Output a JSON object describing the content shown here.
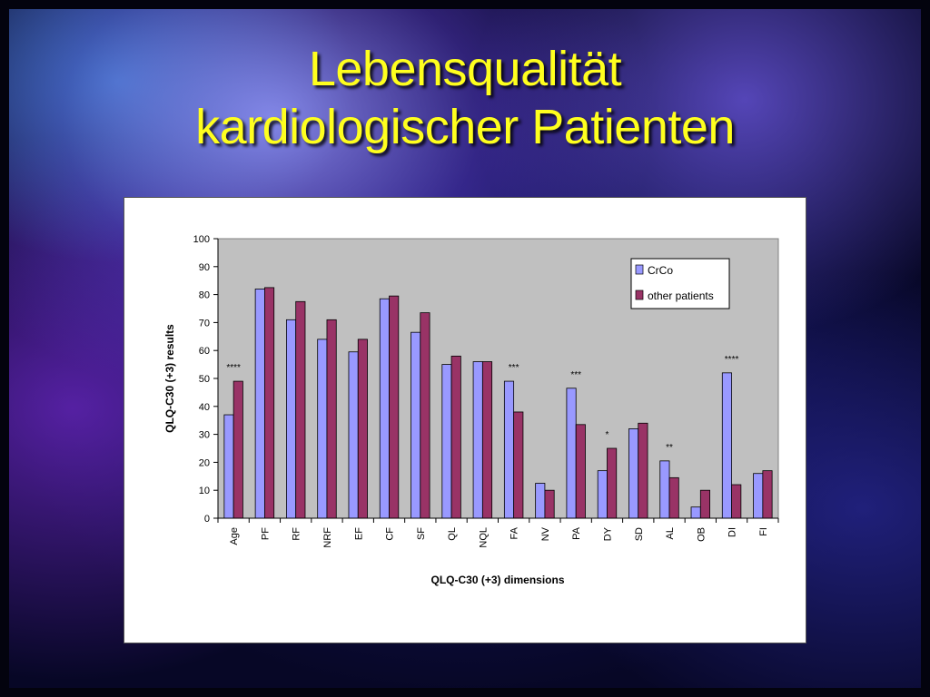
{
  "slide": {
    "title_line1": "Lebensqualität",
    "title_line2": "kardiologischer Patienten",
    "title_color": "#ffff1e"
  },
  "chart_data": {
    "type": "bar",
    "xlabel": "QLQ-C30 (+3) dimensions",
    "ylabel": "QLQ-C30 (+3) results",
    "ylim": [
      0,
      100
    ],
    "yticks": [
      0,
      10,
      20,
      30,
      40,
      50,
      60,
      70,
      80,
      90,
      100
    ],
    "categories": [
      "Age",
      "PF",
      "RF",
      "NRF",
      "EF",
      "CF",
      "SF",
      "QL",
      "NQL",
      "FA",
      "NV",
      "PA",
      "DY",
      "SD",
      "AL",
      "OB",
      "DI",
      "FI"
    ],
    "series": [
      {
        "name": "CrCo",
        "color": "#9999ff",
        "values": [
          37,
          82,
          71,
          64,
          59.5,
          78.5,
          66.5,
          55,
          56,
          49,
          12.5,
          46.5,
          17,
          32,
          20.5,
          4,
          52,
          16
        ]
      },
      {
        "name": "other patients",
        "color": "#993366",
        "values": [
          49,
          82.5,
          77.5,
          71,
          64,
          79.5,
          73.5,
          58,
          56,
          38,
          10,
          33.5,
          25,
          34,
          14.5,
          10,
          12,
          17
        ]
      }
    ],
    "significance": [
      "****",
      "",
      "",
      "",
      "",
      "",
      "",
      "",
      "",
      "***",
      "",
      "***",
      "*",
      "",
      "**",
      "",
      "****",
      ""
    ],
    "legend_position": "top-right",
    "plot_area_color": "#c0c0c0",
    "grid": false
  }
}
